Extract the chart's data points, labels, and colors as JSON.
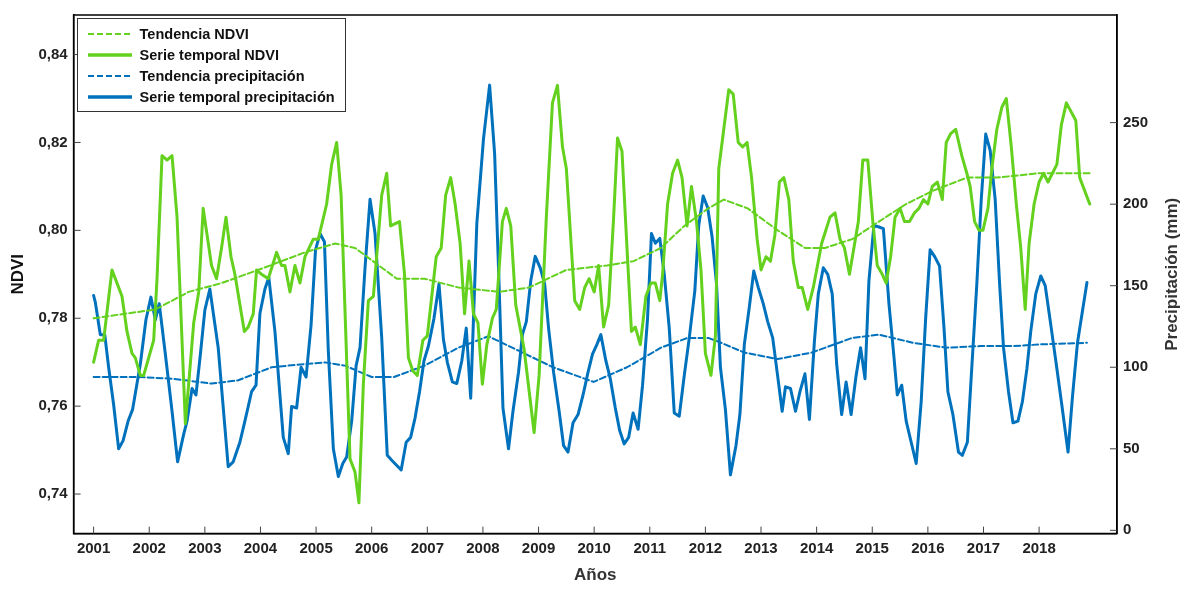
{
  "chart_data": {
    "type": "line",
    "xlabel": "Años",
    "ylabel": "NDVI",
    "y2label": "Precipitación (mm)",
    "legend": "top left",
    "grid": false,
    "xlim": [
      2000.64,
      2019.4
    ],
    "xticks": [
      2001,
      2002,
      2003,
      2004,
      2005,
      2006,
      2007,
      2008,
      2009,
      2010,
      2011,
      2012,
      2013,
      2014,
      2015,
      2016,
      2017,
      2018
    ],
    "ylim": [
      0.731,
      0.849
    ],
    "yticks": [
      {
        "value": 0.74,
        "label": "0,74"
      },
      {
        "value": 0.76,
        "label": "0,76"
      },
      {
        "value": 0.78,
        "label": "0,78"
      },
      {
        "value": 0.8,
        "label": "0,80"
      },
      {
        "value": 0.82,
        "label": "0,82"
      },
      {
        "value": 0.84,
        "label": "0,84"
      }
    ],
    "y2lim": [
      -2,
      316
    ],
    "y2ticks": [
      0,
      50,
      100,
      150,
      200,
      250
    ],
    "series": [
      {
        "name": "Tendencia NDVI",
        "color": "#63d11d",
        "line_style": "dashed",
        "x": [
          2001.0,
          2002.11,
          2002.71,
          2003.3,
          2003.96,
          2004.8,
          2005.34,
          2005.7,
          2006.45,
          2006.95,
          2007.56,
          2008.29,
          2008.83,
          2009.5,
          2010.23,
          2010.71,
          2011.2,
          2011.62,
          2012.05,
          2012.33,
          2012.76,
          2013.3,
          2013.79,
          2014.15,
          2014.64,
          2015.12,
          2015.61,
          2016.09,
          2016.7,
          2017.24,
          2018.0,
          2018.91
        ],
        "values": [
          0.78,
          0.782,
          0.786,
          0.788,
          0.791,
          0.795,
          0.797,
          0.796,
          0.789,
          0.789,
          0.787,
          0.786,
          0.787,
          0.791,
          0.792,
          0.793,
          0.796,
          0.801,
          0.805,
          0.807,
          0.805,
          0.8,
          0.796,
          0.796,
          0.798,
          0.802,
          0.806,
          0.809,
          0.812,
          0.812,
          0.813,
          0.813
        ]
      },
      {
        "name": "Serie temporal NDVI",
        "color": "#63d11d",
        "line_style": "solid",
        "x": [
          2001.0,
          2001.09,
          2001.18,
          2001.33,
          2001.51,
          2001.6,
          2001.69,
          2001.75,
          2001.84,
          2001.9,
          2002.08,
          2002.14,
          2002.23,
          2002.32,
          2002.41,
          2002.5,
          2002.65,
          2002.8,
          2002.89,
          2002.97,
          2003.12,
          2003.21,
          2003.3,
          2003.38,
          2003.47,
          2003.54,
          2003.71,
          2003.78,
          2003.87,
          2003.93,
          2004.02,
          2004.14,
          2004.29,
          2004.38,
          2004.44,
          2004.53,
          2004.62,
          2004.71,
          2004.8,
          2004.95,
          2005.04,
          2005.19,
          2005.28,
          2005.37,
          2005.45,
          2005.61,
          2005.7,
          2005.77,
          2005.85,
          2005.94,
          2006.03,
          2006.18,
          2006.27,
          2006.34,
          2006.5,
          2006.59,
          2006.66,
          2006.74,
          2006.82,
          2006.92,
          2007.0,
          2007.16,
          2007.25,
          2007.33,
          2007.42,
          2007.5,
          2007.59,
          2007.67,
          2007.75,
          2007.83,
          2007.91,
          2007.99,
          2008.07,
          2008.17,
          2008.24,
          2008.35,
          2008.42,
          2008.5,
          2008.59,
          2008.74,
          2008.92,
          2009.01,
          2009.14,
          2009.25,
          2009.34,
          2009.43,
          2009.5,
          2009.65,
          2009.74,
          2009.83,
          2009.91,
          2010.0,
          2010.08,
          2010.17,
          2010.26,
          2010.35,
          2010.42,
          2010.5,
          2010.59,
          2010.67,
          2010.74,
          2010.83,
          2010.93,
          2011.02,
          2011.1,
          2011.18,
          2011.23,
          2011.32,
          2011.41,
          2011.5,
          2011.58,
          2011.67,
          2011.75,
          2011.84,
          2011.92,
          2012.0,
          2012.1,
          2012.18,
          2012.24,
          2012.33,
          2012.42,
          2012.5,
          2012.59,
          2012.67,
          2012.75,
          2012.83,
          2012.93,
          2013.0,
          2013.09,
          2013.17,
          2013.25,
          2013.33,
          2013.41,
          2013.5,
          2013.58,
          2013.67,
          2013.74,
          2013.84,
          2013.94,
          2014.09,
          2014.24,
          2014.33,
          2014.42,
          2014.5,
          2014.59,
          2014.75,
          2014.83,
          2014.92,
          2015.01,
          2015.09,
          2015.18,
          2015.25,
          2015.33,
          2015.41,
          2015.5,
          2015.58,
          2015.67,
          2015.76,
          2015.84,
          2015.92,
          2016.0,
          2016.08,
          2016.17,
          2016.26,
          2016.33,
          2016.41,
          2016.5,
          2016.61,
          2016.7,
          2016.76,
          2016.84,
          2016.92,
          2016.99,
          2017.08,
          2017.15,
          2017.24,
          2017.33,
          2017.41,
          2017.5,
          2017.59,
          2017.67,
          2017.75,
          2017.82,
          2017.91,
          2018.0,
          2018.08,
          2018.16,
          2018.32,
          2018.4,
          2018.49,
          2018.66,
          2018.73,
          2018.91
        ],
        "values": [
          0.77,
          0.775,
          0.775,
          0.791,
          0.785,
          0.777,
          0.772,
          0.771,
          0.767,
          0.767,
          0.775,
          0.789,
          0.817,
          0.816,
          0.817,
          0.803,
          0.756,
          0.779,
          0.786,
          0.805,
          0.792,
          0.789,
          0.796,
          0.803,
          0.794,
          0.79,
          0.777,
          0.778,
          0.781,
          0.791,
          0.79,
          0.789,
          0.795,
          0.792,
          0.792,
          0.786,
          0.792,
          0.788,
          0.794,
          0.798,
          0.798,
          0.806,
          0.815,
          0.82,
          0.808,
          0.748,
          0.745,
          0.738,
          0.765,
          0.784,
          0.785,
          0.808,
          0.813,
          0.801,
          0.802,
          0.79,
          0.771,
          0.768,
          0.767,
          0.775,
          0.776,
          0.794,
          0.796,
          0.808,
          0.812,
          0.806,
          0.797,
          0.781,
          0.793,
          0.781,
          0.779,
          0.765,
          0.774,
          0.78,
          0.782,
          0.802,
          0.805,
          0.801,
          0.783,
          0.773,
          0.754,
          0.767,
          0.803,
          0.829,
          0.833,
          0.819,
          0.814,
          0.784,
          0.782,
          0.787,
          0.789,
          0.786,
          0.792,
          0.778,
          0.783,
          0.803,
          0.821,
          0.818,
          0.796,
          0.777,
          0.778,
          0.774,
          0.785,
          0.788,
          0.788,
          0.784,
          0.79,
          0.806,
          0.813,
          0.816,
          0.812,
          0.801,
          0.81,
          0.802,
          0.791,
          0.772,
          0.767,
          0.776,
          0.814,
          0.823,
          0.832,
          0.831,
          0.82,
          0.819,
          0.82,
          0.812,
          0.798,
          0.791,
          0.794,
          0.793,
          0.799,
          0.811,
          0.812,
          0.807,
          0.793,
          0.787,
          0.787,
          0.782,
          0.787,
          0.797,
          0.803,
          0.804,
          0.798,
          0.796,
          0.79,
          0.802,
          0.816,
          0.816,
          0.802,
          0.792,
          0.79,
          0.788,
          0.794,
          0.803,
          0.805,
          0.802,
          0.802,
          0.804,
          0.805,
          0.807,
          0.806,
          0.81,
          0.811,
          0.807,
          0.82,
          0.822,
          0.823,
          0.817,
          0.813,
          0.81,
          0.802,
          0.8,
          0.8,
          0.805,
          0.814,
          0.823,
          0.828,
          0.83,
          0.819,
          0.806,
          0.796,
          0.782,
          0.797,
          0.806,
          0.811,
          0.813,
          0.811,
          0.815,
          0.824,
          0.829,
          0.825,
          0.812,
          0.806
        ]
      },
      {
        "name": "Tendencia precipitación",
        "color": "#0072bd",
        "line_style": "dashed",
        "axis": "y2",
        "x": [
          2001.0,
          2001.81,
          2002.41,
          2003.12,
          2003.6,
          2004.2,
          2004.8,
          2005.16,
          2005.52,
          2006.0,
          2006.4,
          2006.95,
          2007.56,
          2008.1,
          2008.65,
          2009.26,
          2009.99,
          2010.59,
          2011.2,
          2011.68,
          2012.05,
          2012.21,
          2012.7,
          2013.3,
          2013.91,
          2014.64,
          2015.12,
          2015.73,
          2016.33,
          2016.94,
          2017.55,
          2018.0,
          2018.86
        ],
        "values": [
          94,
          94,
          93,
          90,
          92,
          100,
          102,
          103,
          101,
          94,
          94,
          101,
          112,
          119,
          110,
          100,
          91,
          100,
          112,
          118,
          118,
          116,
          109,
          105,
          109,
          118,
          120,
          115,
          112,
          113,
          113,
          114,
          115
        ]
      },
      {
        "name": "Serie temporal precipitación",
        "color": "#0072bd",
        "line_style": "solid",
        "axis": "y2",
        "x": [
          2001.0,
          2001.03,
          2001.12,
          2001.2,
          2001.27,
          2001.36,
          2001.45,
          2001.53,
          2001.62,
          2001.7,
          2001.84,
          2001.94,
          2002.03,
          2002.11,
          2002.18,
          2002.29,
          2002.41,
          2002.51,
          2002.62,
          2002.68,
          2002.77,
          2002.84,
          2002.92,
          2003.0,
          2003.09,
          2003.24,
          2003.42,
          2003.51,
          2003.63,
          2003.72,
          2003.84,
          2003.92,
          2003.99,
          2004.08,
          2004.15,
          2004.26,
          2004.41,
          2004.5,
          2004.56,
          2004.65,
          2004.73,
          2004.82,
          2004.91,
          2004.99,
          2005.07,
          2005.15,
          2005.22,
          2005.31,
          2005.4,
          2005.48,
          2005.55,
          2005.64,
          2005.72,
          2005.79,
          2005.88,
          2005.97,
          2006.06,
          2006.18,
          2006.28,
          2006.36,
          2006.53,
          2006.62,
          2006.7,
          2006.78,
          2006.86,
          2006.94,
          2007.02,
          2007.12,
          2007.21,
          2007.29,
          2007.36,
          2007.45,
          2007.53,
          2007.62,
          2007.7,
          2007.78,
          2007.89,
          2008.01,
          2008.12,
          2008.21,
          2008.29,
          2008.36,
          2008.46,
          2008.54,
          2008.64,
          2008.71,
          2008.78,
          2008.86,
          2008.94,
          2009.03,
          2009.11,
          2009.18,
          2009.27,
          2009.37,
          2009.45,
          2009.53,
          2009.62,
          2009.71,
          2009.8,
          2009.89,
          2009.97,
          2010.05,
          2010.12,
          2010.21,
          2010.29,
          2010.38,
          2010.46,
          2010.54,
          2010.62,
          2010.7,
          2010.79,
          2010.87,
          2010.96,
          2011.03,
          2011.1,
          2011.18,
          2011.26,
          2011.35,
          2011.44,
          2011.53,
          2011.62,
          2011.71,
          2011.81,
          2011.88,
          2011.96,
          2012.04,
          2012.12,
          2012.2,
          2012.27,
          2012.36,
          2012.45,
          2012.55,
          2012.62,
          2012.7,
          2012.79,
          2012.87,
          2012.95,
          2013.04,
          2013.12,
          2013.21,
          2013.29,
          2013.38,
          2013.44,
          2013.53,
          2013.62,
          2013.7,
          2013.79,
          2013.87,
          2013.96,
          2014.03,
          2014.12,
          2014.2,
          2014.28,
          2014.36,
          2014.45,
          2014.53,
          2014.62,
          2014.71,
          2014.79,
          2014.87,
          2014.94,
          2015.03,
          2015.12,
          2015.2,
          2015.3,
          2015.38,
          2015.45,
          2015.53,
          2015.61,
          2015.7,
          2015.79,
          2015.88,
          2015.96,
          2016.04,
          2016.12,
          2016.21,
          2016.29,
          2016.36,
          2016.45,
          2016.55,
          2016.62,
          2016.71,
          2016.79,
          2016.88,
          2016.96,
          2017.04,
          2017.12,
          2017.21,
          2017.29,
          2017.36,
          2017.45,
          2017.53,
          2017.62,
          2017.7,
          2017.78,
          2017.85,
          2017.94,
          2018.03,
          2018.11,
          2018.21,
          2018.3,
          2018.4,
          2018.52,
          2018.6,
          2018.69,
          2018.86
        ],
        "values": [
          144,
          140,
          120,
          120,
          100,
          77,
          50,
          55,
          67,
          74,
          102,
          129,
          143,
          129,
          139,
          108,
          73,
          42,
          59,
          67,
          87,
          83,
          108,
          135,
          148,
          112,
          39,
          42,
          54,
          67,
          85,
          89,
          133,
          148,
          155,
          122,
          57,
          47,
          76,
          75,
          100,
          94,
          126,
          172,
          182,
          177,
          110,
          50,
          33,
          41,
          45,
          67,
          101,
          112,
          161,
          203,
          182,
          118,
          46,
          43,
          37,
          54,
          57,
          69,
          85,
          104,
          113,
          130,
          151,
          117,
          103,
          91,
          90,
          104,
          124,
          81,
          188,
          240,
          273,
          231,
          151,
          75,
          50,
          73,
          97,
          120,
          128,
          153,
          168,
          161,
          151,
          124,
          97,
          73,
          52,
          48,
          66,
          71,
          83,
          97,
          108,
          114,
          120,
          104,
          93,
          75,
          61,
          53,
          57,
          72,
          62,
          89,
          130,
          182,
          176,
          179,
          157,
          124,
          72,
          70,
          95,
          118,
          147,
          187,
          205,
          198,
          180,
          151,
          100,
          74,
          34,
          52,
          71,
          114,
          137,
          159,
          149,
          139,
          128,
          118,
          97,
          73,
          88,
          87,
          73,
          85,
          96,
          68,
          116,
          145,
          161,
          157,
          145,
          102,
          71,
          91,
          71,
          95,
          112,
          93,
          153,
          187,
          186,
          185,
          139,
          110,
          83,
          89,
          67,
          54,
          41,
          79,
          130,
          172,
          168,
          162,
          124,
          85,
          71,
          48,
          46,
          54,
          100,
          151,
          203,
          243,
          233,
          203,
          151,
          112,
          85,
          66,
          67,
          79,
          99,
          122,
          145,
          156,
          150,
          126,
          104,
          79,
          48,
          82,
          115,
          152
        ]
      }
    ]
  }
}
